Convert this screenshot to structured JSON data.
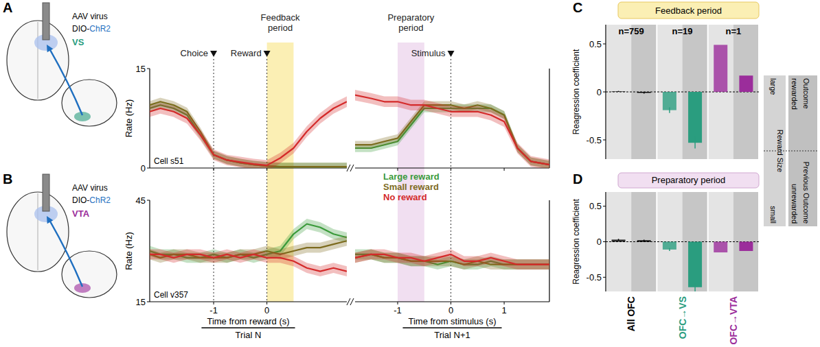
{
  "panels": {
    "letters": [
      "A",
      "B",
      "C",
      "D"
    ]
  },
  "schematics": [
    {
      "virus": "AAV virus",
      "construct": "DIO-ChR2",
      "target": "VS",
      "color": "#2a9d7f"
    },
    {
      "virus": "AAV virus",
      "construct": "DIO-ChR2",
      "target": "VTA",
      "color": "#9b2d9b"
    }
  ],
  "sign_legend": {
    "high": [
      "large",
      "rewarded"
    ],
    "low": [
      "small",
      "unrewarded"
    ]
  },
  "chart_data": [
    {
      "type": "line",
      "ylabel": "Rate (Hz)",
      "annotation": "Cell s51",
      "x": [
        -2.2,
        -2,
        -1.75,
        -1.5,
        -1.25,
        -1,
        -0.75,
        -0.5,
        -0.25,
        0,
        0.25,
        0.5,
        0.75,
        1,
        1.25,
        1.5
      ],
      "xlim": [
        -2.2,
        1.5
      ],
      "xticks": [
        -1,
        0
      ],
      "ylim": [
        0,
        15
      ],
      "yticks": [
        0,
        15
      ],
      "tick_labels": "y",
      "events": [
        {
          "label": "Choice",
          "x": -1
        },
        {
          "label": "Reward",
          "x": 0
        }
      ],
      "periods": [
        {
          "label": "Feedback period",
          "x": [
            0,
            0.5
          ],
          "color": "#fbefb4"
        }
      ],
      "series": [
        {
          "color": "#3a9a3a",
          "error": 0.6,
          "values": [
            9,
            9.5,
            9,
            8,
            5,
            2,
            1.2,
            0.8,
            0.5,
            0.3,
            0.2,
            0.2,
            0.2,
            0.2,
            0.2,
            0.2
          ]
        },
        {
          "color": "#7d6b1e",
          "error": 0.6,
          "values": [
            9.5,
            10,
            9.5,
            8.5,
            5.5,
            2,
            1.2,
            0.8,
            0.5,
            0.3,
            0.2,
            0.2,
            0.2,
            0.2,
            0.2,
            0.2
          ]
        },
        {
          "color": "#d42a2a",
          "error": 0.8,
          "values": [
            8.5,
            9,
            8.5,
            7.5,
            5,
            2,
            1.2,
            0.9,
            0.6,
            0.4,
            1.5,
            3,
            5.5,
            7.5,
            9,
            10
          ]
        }
      ]
    },
    {
      "type": "line",
      "x": [
        -1.8,
        -1.5,
        -1.25,
        -1,
        -0.75,
        -0.5,
        -0.25,
        0,
        0.25,
        0.5,
        0.75,
        1,
        1.25,
        1.5,
        1.85
      ],
      "xlim": [
        -1.8,
        1.85
      ],
      "xticks": [
        -1,
        0,
        1
      ],
      "ylim": [
        0,
        15
      ],
      "tick_labels": false,
      "events": [
        {
          "label": "Stimulus",
          "x": 0
        }
      ],
      "periods": [
        {
          "label": "Preparatory period",
          "x": [
            -1,
            -0.5
          ],
          "color": "#f1dff1"
        }
      ],
      "series": [
        {
          "color": "#3a9a3a",
          "error": 0.6,
          "values": [
            3,
            3,
            3.5,
            4,
            6.5,
            9,
            9,
            9,
            9,
            9,
            9,
            8,
            3,
            1,
            0.5
          ]
        },
        {
          "color": "#7d6b1e",
          "error": 0.6,
          "values": [
            3.5,
            3.5,
            4,
            4.5,
            7,
            9.5,
            9.5,
            9.5,
            9,
            9.5,
            9,
            8,
            3,
            1,
            0.5
          ]
        },
        {
          "color": "#d42a2a",
          "error": 0.8,
          "values": [
            11,
            10.5,
            10,
            10,
            9.5,
            9.5,
            9,
            8.5,
            8.5,
            8.5,
            8,
            7,
            3,
            1,
            0.5
          ]
        }
      ]
    },
    {
      "type": "line",
      "ylabel": "Rate (Hz)",
      "annotation": "Cell v357",
      "xlabel": "Time from reward (s)",
      "xsublabel": "Trial N",
      "legend": "top-right",
      "x": [
        -2.2,
        -2,
        -1.75,
        -1.5,
        -1.25,
        -1,
        -0.75,
        -0.5,
        -0.25,
        0,
        0.25,
        0.5,
        0.75,
        1,
        1.25,
        1.5
      ],
      "xlim": [
        -2.2,
        1.5
      ],
      "xticks": [
        -1,
        0
      ],
      "ylim": [
        15,
        45
      ],
      "yticks": [
        15,
        45
      ],
      "series": [
        {
          "name": "Large reward",
          "color": "#3a9a3a",
          "error": 1.5,
          "values": [
            30,
            29,
            29,
            28,
            28,
            29,
            28,
            29,
            28,
            29,
            30,
            35,
            38,
            37,
            35,
            34
          ]
        },
        {
          "name": "Small reward",
          "color": "#7d6b1e",
          "error": 1.5,
          "values": [
            29,
            28,
            29,
            29,
            28,
            28,
            28,
            29,
            29,
            30,
            29,
            30,
            31,
            31,
            32,
            33
          ]
        },
        {
          "name": "No reward",
          "color": "#d42a2a",
          "error": 1.5,
          "values": [
            29,
            29,
            28,
            29,
            29,
            28,
            29,
            28,
            29,
            28,
            28,
            27,
            25,
            24,
            25,
            24
          ]
        }
      ]
    },
    {
      "type": "line",
      "xlabel": "Time from stimulus (s)",
      "xsublabel": "Trial N+1",
      "x": [
        -1.8,
        -1.5,
        -1.25,
        -1,
        -0.75,
        -0.5,
        -0.25,
        0,
        0.25,
        0.5,
        0.75,
        1,
        1.25,
        1.5,
        1.85
      ],
      "xlim": [
        -1.8,
        1.85
      ],
      "xticks": [
        -1,
        0,
        1
      ],
      "ylim": [
        15,
        45
      ],
      "tick_labels": "x",
      "series": [
        {
          "color": "#3a9a3a",
          "error": 1.5,
          "values": [
            29,
            29,
            28,
            28,
            27,
            27,
            26,
            27,
            26,
            26,
            27,
            26,
            26,
            26,
            26
          ]
        },
        {
          "color": "#7d6b1e",
          "error": 1.5,
          "values": [
            28,
            29,
            28,
            28,
            27,
            27,
            27,
            27,
            26,
            27,
            26,
            26,
            26,
            26,
            26
          ]
        },
        {
          "color": "#d42a2a",
          "error": 1.5,
          "values": [
            28,
            29,
            29,
            28,
            28,
            27,
            28,
            29,
            27,
            27,
            28,
            27,
            26,
            26,
            26
          ]
        }
      ]
    },
    {
      "type": "bar",
      "title": "Feedback period",
      "ylabel": "Reagression coefficient",
      "n_labels": [
        "n=759",
        "n=19",
        "n=1"
      ],
      "colors": [
        "#000000",
        "#2a9d7f",
        "#9b2d9b"
      ],
      "ylim": [
        -0.7,
        0.7
      ],
      "yticks": [
        -0.5,
        0,
        0.5
      ],
      "series": [
        {
          "name": "Reward Size",
          "values": [
            0.005,
            -0.19,
            0.49
          ],
          "error": [
            0.005,
            0.03,
            null
          ]
        },
        {
          "name": "Outcome",
          "values": [
            -0.01,
            -0.53,
            0.17
          ],
          "error": [
            0.008,
            0.06,
            null
          ]
        }
      ]
    },
    {
      "type": "bar",
      "title": "Preparatory period",
      "ylabel": "Reagression coefficient",
      "categories": [
        "All OFC",
        "OFC→VS",
        "OFC→VTA"
      ],
      "colors": [
        "#000000",
        "#2a9d7f",
        "#9b2d9b"
      ],
      "ylim": [
        -0.7,
        0.7
      ],
      "yticks": [
        -0.5,
        0,
        0.5
      ],
      "series": [
        {
          "values": [
            0.03,
            -0.11,
            -0.15
          ],
          "error": [
            0.01,
            0.02,
            null
          ]
        },
        {
          "name": "Previous Outcome",
          "values": [
            0.02,
            -0.64,
            -0.13
          ],
          "error": [
            0.01,
            0.06,
            null
          ]
        }
      ]
    }
  ]
}
